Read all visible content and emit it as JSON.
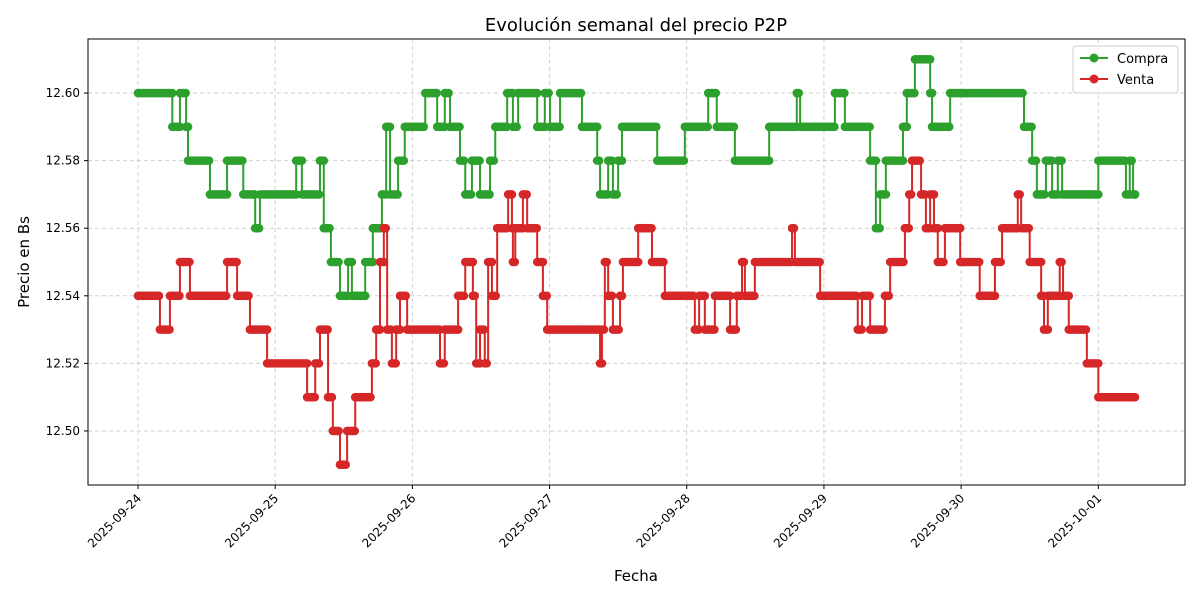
{
  "chart_data": {
    "type": "line",
    "title": "Evolución semanal del precio P2P",
    "xlabel": "Fecha",
    "ylabel": "Precio en Bs",
    "xlim": [
      "2025-09-23 15:15",
      "2025-10-01 15:10"
    ],
    "ylim": [
      12.484,
      12.616
    ],
    "x_ticks": [
      "2025-09-24",
      "2025-09-25",
      "2025-09-26",
      "2025-09-27",
      "2025-09-28",
      "2025-09-29",
      "2025-09-30",
      "2025-10-01"
    ],
    "y_ticks": [
      "12.50",
      "12.52",
      "12.54",
      "12.56",
      "12.58",
      "12.60"
    ],
    "grid": true,
    "grid_style": "dashed",
    "legend_position": "top-right",
    "step_note_hidden": null,
    "series": [
      {
        "name": "Compra",
        "color": "#2ca02c",
        "marker": "circle",
        "points": [
          [
            "2025-09-24 00:00",
            12.6
          ],
          [
            "2025-09-24 06:00",
            12.59
          ],
          [
            "2025-09-24 07:20",
            12.6
          ],
          [
            "2025-09-24 08:25",
            12.59
          ],
          [
            "2025-09-24 08:45",
            12.58
          ],
          [
            "2025-09-24 12:35",
            12.57
          ],
          [
            "2025-09-24 15:35",
            12.58
          ],
          [
            "2025-09-24 18:25",
            12.57
          ],
          [
            "2025-09-24 20:30",
            12.56
          ],
          [
            "2025-09-24 21:20",
            12.57
          ],
          [
            "2025-09-25 03:40",
            12.58
          ],
          [
            "2025-09-25 04:40",
            12.57
          ],
          [
            "2025-09-25 07:50",
            12.58
          ],
          [
            "2025-09-25 08:30",
            12.56
          ],
          [
            "2025-09-25 09:45",
            12.55
          ],
          [
            "2025-09-25 11:20",
            12.54
          ],
          [
            "2025-09-25 12:45",
            12.55
          ],
          [
            "2025-09-25 13:25",
            12.54
          ],
          [
            "2025-09-25 15:45",
            12.55
          ],
          [
            "2025-09-25 17:05",
            12.56
          ],
          [
            "2025-09-25 18:40",
            12.57
          ],
          [
            "2025-09-25 19:25",
            12.59
          ],
          [
            "2025-09-25 20:05",
            12.57
          ],
          [
            "2025-09-25 21:30",
            12.58
          ],
          [
            "2025-09-25 22:40",
            12.59
          ],
          [
            "2025-09-26 02:15",
            12.6
          ],
          [
            "2025-09-26 04:20",
            12.59
          ],
          [
            "2025-09-26 05:40",
            12.6
          ],
          [
            "2025-09-26 06:35",
            12.59
          ],
          [
            "2025-09-26 08:20",
            12.58
          ],
          [
            "2025-09-26 09:15",
            12.57
          ],
          [
            "2025-09-26 10:25",
            12.58
          ],
          [
            "2025-09-26 11:50",
            12.57
          ],
          [
            "2025-09-26 13:35",
            12.58
          ],
          [
            "2025-09-26 14:30",
            12.59
          ],
          [
            "2025-09-26 16:35",
            12.6
          ],
          [
            "2025-09-26 17:35",
            12.59
          ],
          [
            "2025-09-26 18:30",
            12.6
          ],
          [
            "2025-09-26 21:50",
            12.59
          ],
          [
            "2025-09-26 23:10",
            12.6
          ],
          [
            "2025-09-27 00:05",
            12.59
          ],
          [
            "2025-09-27 01:50",
            12.6
          ],
          [
            "2025-09-27 05:40",
            12.59
          ],
          [
            "2025-09-27 08:20",
            12.58
          ],
          [
            "2025-09-27 08:50",
            12.57
          ],
          [
            "2025-09-27 10:15",
            12.58
          ],
          [
            "2025-09-27 11:05",
            12.57
          ],
          [
            "2025-09-27 12:00",
            12.58
          ],
          [
            "2025-09-27 12:40",
            12.59
          ],
          [
            "2025-09-27 18:50",
            12.58
          ],
          [
            "2025-09-27 23:40",
            12.59
          ],
          [
            "2025-09-28 03:45",
            12.6
          ],
          [
            "2025-09-28 05:15",
            12.59
          ],
          [
            "2025-09-28 08:25",
            12.58
          ],
          [
            "2025-09-28 14:25",
            12.59
          ],
          [
            "2025-09-28 19:15",
            12.6
          ],
          [
            "2025-09-28 19:50",
            12.59
          ],
          [
            "2025-09-29 01:55",
            12.6
          ],
          [
            "2025-09-29 03:40",
            12.59
          ],
          [
            "2025-09-29 08:05",
            12.58
          ],
          [
            "2025-09-29 09:05",
            12.56
          ],
          [
            "2025-09-29 09:50",
            12.57
          ],
          [
            "2025-09-29 10:50",
            12.58
          ],
          [
            "2025-09-29 13:50",
            12.59
          ],
          [
            "2025-09-29 14:30",
            12.6
          ],
          [
            "2025-09-29 15:55",
            12.61
          ],
          [
            "2025-09-29 18:35",
            12.6
          ],
          [
            "2025-09-29 18:55",
            12.59
          ],
          [
            "2025-09-29 22:05",
            12.6
          ],
          [
            "2025-09-30 11:00",
            12.59
          ],
          [
            "2025-09-30 12:25",
            12.58
          ],
          [
            "2025-09-30 13:15",
            12.57
          ],
          [
            "2025-09-30 14:50",
            12.58
          ],
          [
            "2025-09-30 15:55",
            12.57
          ],
          [
            "2025-09-30 16:55",
            12.58
          ],
          [
            "2025-09-30 17:40",
            12.57
          ],
          [
            "2025-10-01 00:00",
            12.58
          ],
          [
            "2025-10-01 04:50",
            12.57
          ],
          [
            "2025-10-01 05:30",
            12.58
          ],
          [
            "2025-10-01 06:05",
            12.57
          ],
          [
            "2025-10-01 06:25",
            12.57
          ]
        ]
      },
      {
        "name": "Venta",
        "color": "#d62728",
        "marker": "circle",
        "points": [
          [
            "2025-09-24 00:00",
            12.54
          ],
          [
            "2025-09-24 03:50",
            12.53
          ],
          [
            "2025-09-24 05:35",
            12.54
          ],
          [
            "2025-09-24 07:20",
            12.55
          ],
          [
            "2025-09-24 09:05",
            12.54
          ],
          [
            "2025-09-24 15:35",
            12.55
          ],
          [
            "2025-09-24 17:20",
            12.54
          ],
          [
            "2025-09-24 19:35",
            12.53
          ],
          [
            "2025-09-24 22:35",
            12.52
          ],
          [
            "2025-09-25 05:35",
            12.51
          ],
          [
            "2025-09-25 07:00",
            12.52
          ],
          [
            "2025-09-25 07:50",
            12.53
          ],
          [
            "2025-09-25 09:15",
            12.51
          ],
          [
            "2025-09-25 10:05",
            12.5
          ],
          [
            "2025-09-25 11:20",
            12.49
          ],
          [
            "2025-09-25 12:35",
            12.5
          ],
          [
            "2025-09-25 14:00",
            12.51
          ],
          [
            "2025-09-25 16:55",
            12.52
          ],
          [
            "2025-09-25 17:40",
            12.53
          ],
          [
            "2025-09-25 18:20",
            12.55
          ],
          [
            "2025-09-25 19:00",
            12.56
          ],
          [
            "2025-09-25 19:35",
            12.53
          ],
          [
            "2025-09-25 20:25",
            12.52
          ],
          [
            "2025-09-25 21:10",
            12.53
          ],
          [
            "2025-09-25 21:50",
            12.54
          ],
          [
            "2025-09-25 23:05",
            12.53
          ],
          [
            "2025-09-26 04:50",
            12.52
          ],
          [
            "2025-09-26 05:40",
            12.53
          ],
          [
            "2025-09-26 08:00",
            12.54
          ],
          [
            "2025-09-26 09:15",
            12.55
          ],
          [
            "2025-09-26 10:35",
            12.54
          ],
          [
            "2025-09-26 11:10",
            12.52
          ],
          [
            "2025-09-26 11:50",
            12.53
          ],
          [
            "2025-09-26 12:40",
            12.52
          ],
          [
            "2025-09-26 13:15",
            12.55
          ],
          [
            "2025-09-26 13:55",
            12.54
          ],
          [
            "2025-09-26 14:50",
            12.56
          ],
          [
            "2025-09-26 16:45",
            12.57
          ],
          [
            "2025-09-26 17:25",
            12.56
          ],
          [
            "2025-09-26 17:35",
            12.55
          ],
          [
            "2025-09-26 18:00",
            12.56
          ],
          [
            "2025-09-26 19:20",
            12.57
          ],
          [
            "2025-09-26 20:05",
            12.56
          ],
          [
            "2025-09-26 21:50",
            12.55
          ],
          [
            "2025-09-26 22:50",
            12.54
          ],
          [
            "2025-09-26 23:35",
            12.53
          ],
          [
            "2025-09-27 08:50",
            12.52
          ],
          [
            "2025-09-27 09:10",
            12.53
          ],
          [
            "2025-09-27 09:40",
            12.55
          ],
          [
            "2025-09-27 10:15",
            12.54
          ],
          [
            "2025-09-27 11:05",
            12.53
          ],
          [
            "2025-09-27 12:20",
            12.54
          ],
          [
            "2025-09-27 12:50",
            12.55
          ],
          [
            "2025-09-27 15:30",
            12.56
          ],
          [
            "2025-09-27 17:55",
            12.55
          ],
          [
            "2025-09-27 20:10",
            12.54
          ],
          [
            "2025-09-28 01:25",
            12.53
          ],
          [
            "2025-09-28 02:10",
            12.54
          ],
          [
            "2025-09-28 03:10",
            12.53
          ],
          [
            "2025-09-28 04:55",
            12.54
          ],
          [
            "2025-09-28 07:35",
            12.53
          ],
          [
            "2025-09-28 08:45",
            12.54
          ],
          [
            "2025-09-28 09:40",
            12.55
          ],
          [
            "2025-09-28 10:10",
            12.54
          ],
          [
            "2025-09-28 11:55",
            12.55
          ],
          [
            "2025-09-28 18:25",
            12.56
          ],
          [
            "2025-09-28 18:55",
            12.55
          ],
          [
            "2025-09-28 23:20",
            12.54
          ],
          [
            "2025-09-29 05:55",
            12.53
          ],
          [
            "2025-09-29 06:40",
            12.54
          ],
          [
            "2025-09-29 08:05",
            12.53
          ],
          [
            "2025-09-29 10:40",
            12.54
          ],
          [
            "2025-09-29 11:35",
            12.55
          ],
          [
            "2025-09-29 14:10",
            12.56
          ],
          [
            "2025-09-29 14:55",
            12.57
          ],
          [
            "2025-09-29 15:25",
            12.58
          ],
          [
            "2025-09-29 17:00",
            12.57
          ],
          [
            "2025-09-29 17:50",
            12.56
          ],
          [
            "2025-09-29 18:35",
            12.57
          ],
          [
            "2025-09-29 19:15",
            12.56
          ],
          [
            "2025-09-29 19:55",
            12.55
          ],
          [
            "2025-09-29 21:10",
            12.56
          ],
          [
            "2025-09-29 23:50",
            12.55
          ],
          [
            "2025-09-30 03:15",
            12.54
          ],
          [
            "2025-09-30 05:55",
            12.55
          ],
          [
            "2025-09-30 07:10",
            12.56
          ],
          [
            "2025-09-30 09:55",
            12.57
          ],
          [
            "2025-09-30 10:30",
            12.56
          ],
          [
            "2025-09-30 12:00",
            12.55
          ],
          [
            "2025-09-30 14:00",
            12.54
          ],
          [
            "2025-09-30 14:30",
            12.53
          ],
          [
            "2025-09-30 15:10",
            12.54
          ],
          [
            "2025-09-30 17:15",
            12.55
          ],
          [
            "2025-09-30 17:50",
            12.54
          ],
          [
            "2025-09-30 18:50",
            12.53
          ],
          [
            "2025-09-30 22:00",
            12.52
          ],
          [
            "2025-10-01 00:00",
            12.51
          ],
          [
            "2025-10-01 06:25",
            12.51
          ]
        ]
      }
    ]
  }
}
